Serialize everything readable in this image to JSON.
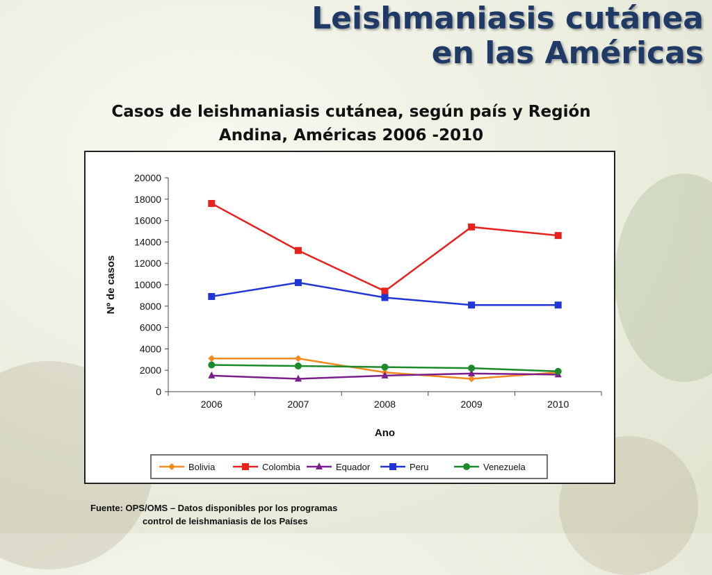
{
  "slide": {
    "title_line1": "Leishmaniasis cutánea",
    "title_line2": "en las Américas",
    "subtitle_line1": "Casos de leishmaniasis cutánea, según país y Región",
    "subtitle_line2": "Andina, Américas 2006 -2010",
    "source_line1": "Fuente:  OPS/OMS – Datos disponibles por los programas",
    "source_line2": "control de leishmaniasis de los Países"
  },
  "chart_data": {
    "type": "line",
    "title": "",
    "xlabel": "Ano",
    "ylabel": "Nº de casos",
    "x": [
      "2006",
      "2007",
      "2008",
      "2009",
      "2010"
    ],
    "ylim": [
      0,
      20000
    ],
    "yticks": [
      "0",
      "2000",
      "4000",
      "6000",
      "8000",
      "10000",
      "12000",
      "14000",
      "16000",
      "18000",
      "20000"
    ],
    "grid": false,
    "legend_position": "bottom",
    "series": [
      {
        "name": "Bolivia",
        "color": "#f28a1e",
        "marker": "diamond",
        "values": [
          3100,
          3100,
          1800,
          1200,
          1800
        ]
      },
      {
        "name": "Colombia",
        "color": "#e8211c",
        "marker": "square",
        "values": [
          17600,
          13200,
          9400,
          15400,
          14600
        ]
      },
      {
        "name": "Equador",
        "color": "#7a1f8c",
        "marker": "triangle",
        "values": [
          1500,
          1200,
          1500,
          1700,
          1600
        ]
      },
      {
        "name": "Peru",
        "color": "#1f35d6",
        "marker": "square",
        "values": [
          8900,
          10200,
          8800,
          8100,
          8100
        ]
      },
      {
        "name": "Venezuela",
        "color": "#1b8a2a",
        "marker": "circle",
        "values": [
          2500,
          2400,
          2300,
          2200,
          1900
        ]
      }
    ]
  }
}
